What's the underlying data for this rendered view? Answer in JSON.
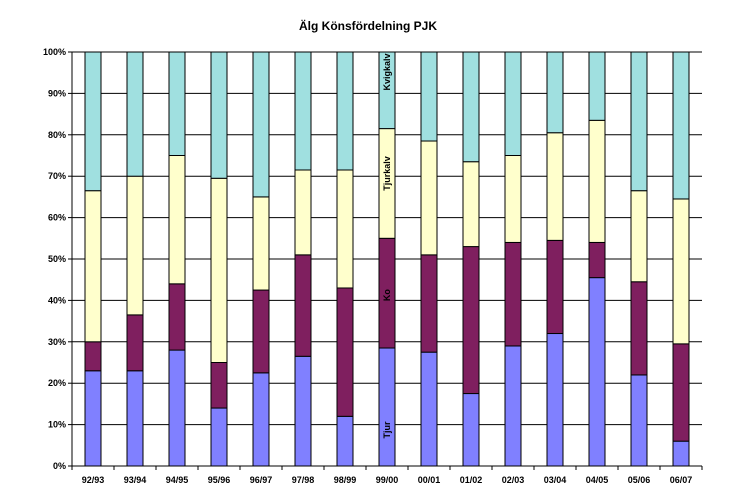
{
  "chart_data": {
    "type": "bar",
    "stacked": true,
    "normalized_percent": true,
    "title": "Älg Könsfördelning  PJK",
    "xlabel": "",
    "ylabel": "",
    "ylim": [
      0,
      100
    ],
    "y_ticks": [
      "0%",
      "10%",
      "20%",
      "30%",
      "40%",
      "50%",
      "60%",
      "70%",
      "80%",
      "90%",
      "100%"
    ],
    "grid": true,
    "legend": "none",
    "categories": [
      "92/93",
      "93/94",
      "94/95",
      "95/96",
      "96/97",
      "97/98",
      "98/99",
      "99/00",
      "00/01",
      "01/02",
      "02/03",
      "03/04",
      "04/05",
      "05/06",
      "06/07"
    ],
    "series": [
      {
        "name": "Tjur",
        "color": "#8080ff",
        "values": [
          23,
          23,
          28,
          14,
          22.5,
          26.5,
          12,
          28.5,
          27.5,
          17.5,
          29,
          32,
          45.5,
          22,
          6
        ]
      },
      {
        "name": "Ko",
        "color": "#7f1f5f",
        "values": [
          7,
          13.5,
          16,
          11,
          20,
          24.5,
          31,
          26.5,
          23.5,
          35.5,
          25,
          22.5,
          8.5,
          22.5,
          23.5
        ]
      },
      {
        "name": "Tjurkalv",
        "color": "#ffffcc",
        "values": [
          36.5,
          33.5,
          31,
          44.5,
          22.5,
          20.5,
          28.5,
          26.5,
          27.5,
          20.5,
          21,
          26,
          29.5,
          22,
          35
        ]
      },
      {
        "name": "Kvigkalv",
        "color": "#a0e0e0",
        "values": [
          33.5,
          30,
          25,
          30.5,
          35,
          28.5,
          28.5,
          18.5,
          21.5,
          26.5,
          25,
          19.5,
          16.5,
          33.5,
          35.5
        ]
      }
    ],
    "segment_labels": [
      {
        "category": "99/00",
        "series": "Tjur",
        "text": "Tjur"
      },
      {
        "category": "99/00",
        "series": "Ko",
        "text": "Ko"
      },
      {
        "category": "99/00",
        "series": "Tjurkalv",
        "text": "Tjurkalv"
      },
      {
        "category": "99/00",
        "series": "Kvigkalv",
        "text": "Kvigkalv"
      }
    ],
    "colors": {
      "plot_background": "#ffffff",
      "gridline": "#000000",
      "bar_outline": "#000000"
    }
  }
}
